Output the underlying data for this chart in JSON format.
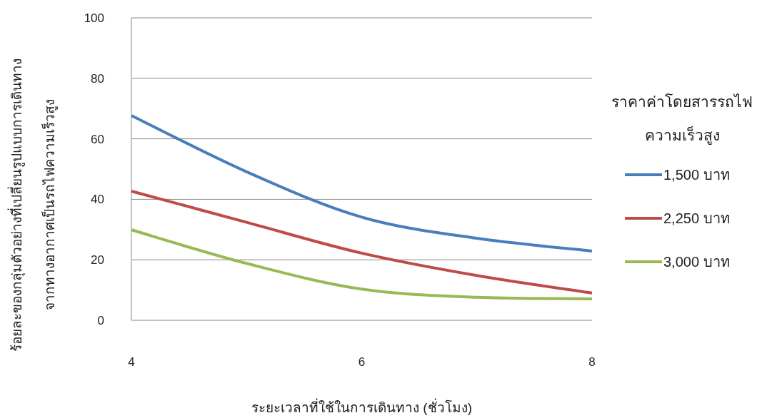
{
  "chart_data": {
    "type": "line",
    "xlabel": "ระยะเวลาที่ใช้ในการเดินทาง (ชั่วโมง)",
    "ylabel": "ร้อยละของกลุ่มตัวอย่างที่เปลี่ยนรูปแบบการเดินทาง\nจากทางอากาศเป็นรถไฟความเร็วสูง",
    "legend_title": "ราคาค่าโดยสารรถไฟ\nความเร็วสูง",
    "x": [
      4,
      5,
      6,
      7,
      8
    ],
    "xlim": [
      4,
      8
    ],
    "xticks": [
      4,
      6,
      8
    ],
    "ylim": [
      0,
      100
    ],
    "yticks": [
      0,
      20,
      40,
      60,
      80,
      100
    ],
    "grid": "y",
    "legend": "right",
    "marker": "none",
    "line_style": "solid",
    "series": [
      {
        "name": "1,500 บาท",
        "color": "#4a7ebb",
        "values": [
          67.7,
          49.1,
          34.1,
          27.1,
          22.9
        ]
      },
      {
        "name": "2,250 บาท",
        "color": "#be4b48",
        "values": [
          42.7,
          32.4,
          22.2,
          14.8,
          9.0
        ]
      },
      {
        "name": "3,000 บาท",
        "color": "#98b954",
        "values": [
          29.9,
          18.8,
          10.3,
          7.6,
          7.1
        ]
      }
    ]
  }
}
